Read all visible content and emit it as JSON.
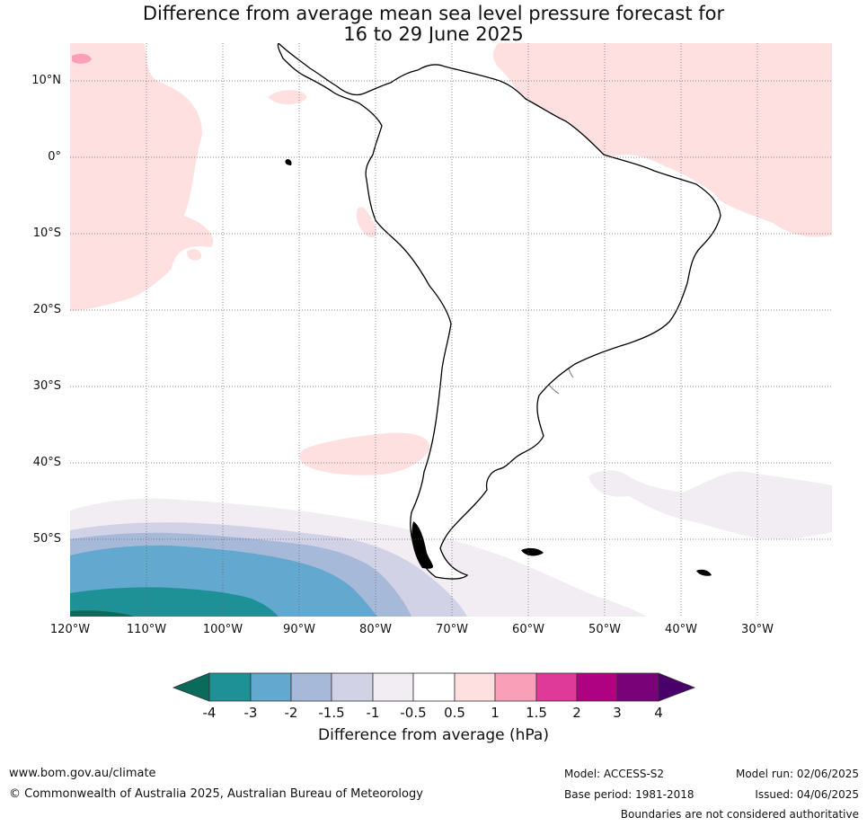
{
  "title_line1": "Difference from average mean sea level pressure forecast for",
  "title_line2": "16 to 29 June 2025",
  "map": {
    "lat_labels": [
      "10°N",
      "0°",
      "10°S",
      "20°S",
      "30°S",
      "40°S",
      "50°S"
    ],
    "lon_labels": [
      "120°W",
      "110°W",
      "100°W",
      "90°W",
      "80°W",
      "70°W",
      "60°W",
      "50°W",
      "40°W",
      "30°W"
    ],
    "colors": {
      "pos_0_5_1": "#fde0df",
      "pos_1_1_5": "#f9a0b8",
      "neg_0_5_1": "#f1edf3",
      "neg_1_1_5": "#d2d2e6",
      "neg_1_5_2": "#a7b9d9",
      "neg_2_3": "#62a8cf",
      "neg_3_4": "#1e9196",
      "neg_lt_4": "#0b6b5a",
      "coast": "#000000",
      "border": "#808080"
    }
  },
  "colorbar": {
    "title": "Difference from average (hPa)",
    "ticks": [
      "-4",
      "-3",
      "-2",
      "-1.5",
      "-1",
      "-0.5",
      "0.5",
      "1",
      "1.5",
      "2",
      "3",
      "4"
    ],
    "colors": [
      "#0b6b5a",
      "#1e9196",
      "#62a8cf",
      "#a7b9d9",
      "#d2d2e6",
      "#f1edf3",
      "#ffffff",
      "#fde0df",
      "#f9a0b8",
      "#df3a9a",
      "#ae0282",
      "#7a0279",
      "#4a006a"
    ]
  },
  "footer": {
    "website": "www.bom.gov.au/climate",
    "copyright": "© Commonwealth of Australia 2025, Australian Bureau of Meteorology",
    "model": "Model: ACCESS-S2",
    "base_period": "Base period: 1981-2018",
    "model_run": "Model run: 02/06/2025",
    "issued": "Issued: 04/06/2025",
    "disclaimer": "Boundaries are not considered authoritative"
  }
}
